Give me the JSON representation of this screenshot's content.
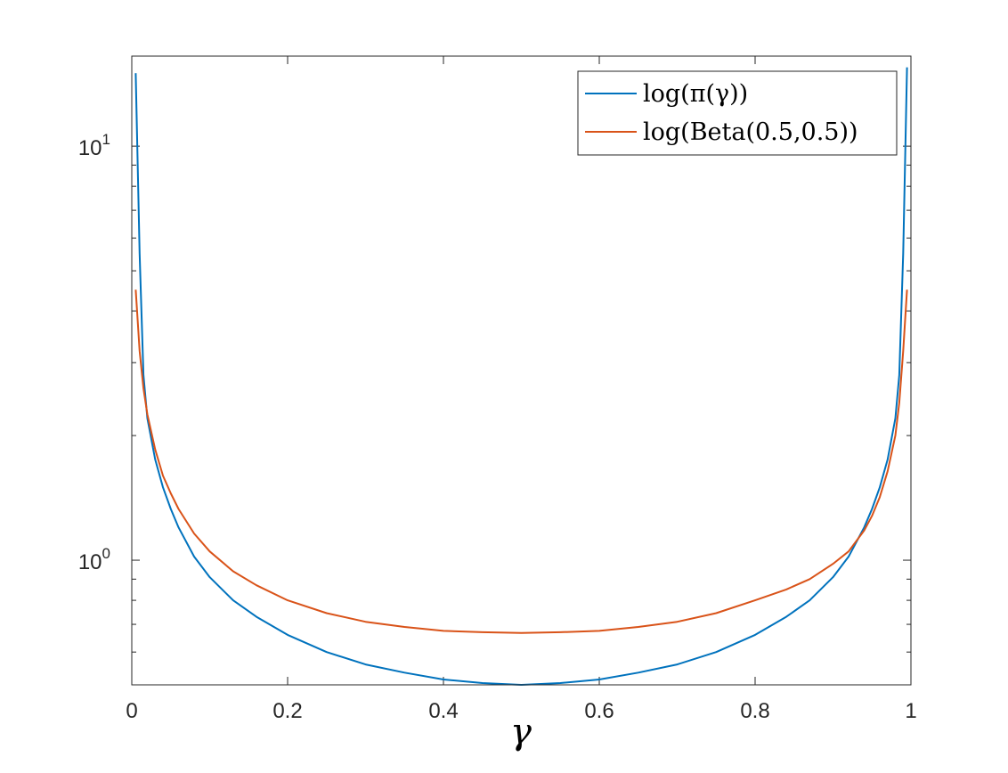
{
  "chart_data": {
    "type": "line",
    "xlabel": "γ",
    "ylabel": "",
    "title": "",
    "xlim": [
      0,
      1
    ],
    "ylim": [
      0.5,
      16.5
    ],
    "yscale": "log",
    "grid": false,
    "legend_position": "top-right",
    "x_ticks": [
      {
        "value": 0,
        "label": "0"
      },
      {
        "value": 0.2,
        "label": "0.2"
      },
      {
        "value": 0.4,
        "label": "0.4"
      },
      {
        "value": 0.6,
        "label": "0.6"
      },
      {
        "value": 0.8,
        "label": "0.8"
      },
      {
        "value": 1,
        "label": "1"
      }
    ],
    "y_ticks": [
      {
        "value": 1,
        "base": "10",
        "exp": "0"
      },
      {
        "value": 10,
        "base": "10",
        "exp": "1"
      }
    ],
    "x": [
      0.005,
      0.01,
      0.015,
      0.02,
      0.03,
      0.04,
      0.05,
      0.06,
      0.08,
      0.1,
      0.13,
      0.16,
      0.2,
      0.25,
      0.3,
      0.35,
      0.4,
      0.45,
      0.5,
      0.55,
      0.6,
      0.65,
      0.7,
      0.75,
      0.8,
      0.84,
      0.87,
      0.9,
      0.92,
      0.94,
      0.95,
      0.96,
      0.97,
      0.98,
      0.985,
      0.99,
      0.995
    ],
    "series": [
      {
        "name": "log(π(γ))",
        "color": "#0072BD",
        "values": [
          15.0,
          5.5,
          2.8,
          2.2,
          1.75,
          1.5,
          1.33,
          1.2,
          1.02,
          0.91,
          0.8,
          0.73,
          0.66,
          0.6,
          0.56,
          0.535,
          0.515,
          0.505,
          0.5,
          0.505,
          0.515,
          0.535,
          0.56,
          0.6,
          0.66,
          0.73,
          0.8,
          0.91,
          1.02,
          1.2,
          1.33,
          1.5,
          1.75,
          2.2,
          2.8,
          5.5,
          15.5
        ]
      },
      {
        "name": "log(Beta(0.5,0.5))",
        "color": "#D95319",
        "values": [
          4.5,
          3.2,
          2.6,
          2.25,
          1.85,
          1.6,
          1.45,
          1.33,
          1.16,
          1.05,
          0.94,
          0.87,
          0.8,
          0.745,
          0.71,
          0.69,
          0.675,
          0.67,
          0.667,
          0.67,
          0.675,
          0.69,
          0.71,
          0.745,
          0.8,
          0.85,
          0.9,
          0.98,
          1.05,
          1.18,
          1.28,
          1.42,
          1.64,
          2.0,
          2.4,
          3.2,
          4.5
        ]
      }
    ]
  }
}
